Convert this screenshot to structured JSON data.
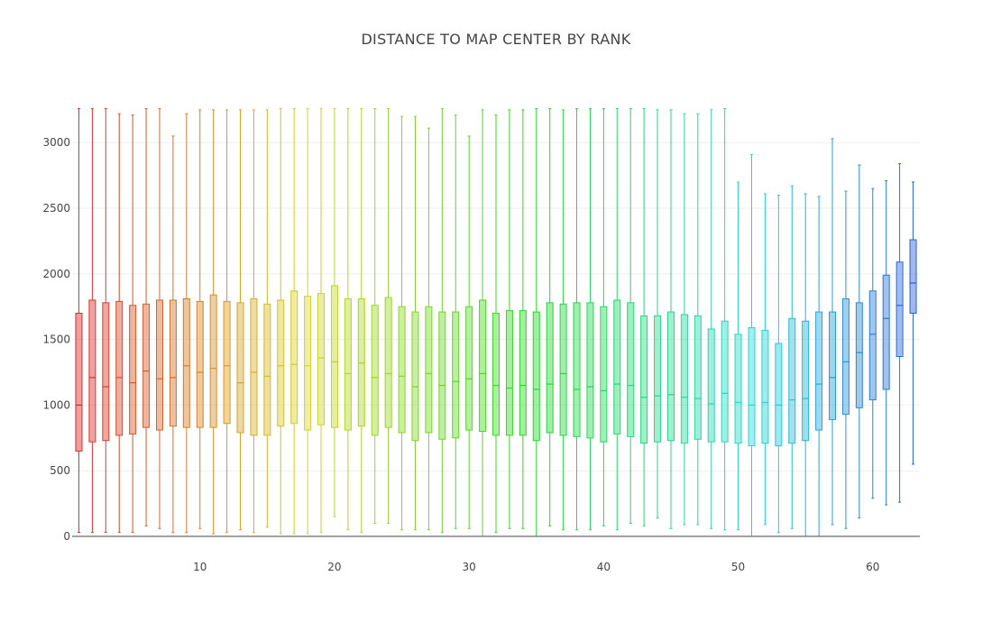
{
  "chart_data": {
    "type": "box",
    "title": "DISTANCE TO MAP CENTER BY RANK",
    "xlabel": "",
    "ylabel": "",
    "x_ticks": [
      10,
      20,
      30,
      40,
      50,
      60
    ],
    "y_ticks": [
      0,
      500,
      1000,
      1500,
      2000,
      2500,
      3000
    ],
    "ylim": [
      0,
      3400
    ],
    "xlim": [
      0.5,
      63.5
    ],
    "grid": "horizontal",
    "legend": "none",
    "ranks": [
      1,
      2,
      3,
      4,
      5,
      6,
      7,
      8,
      9,
      10,
      11,
      12,
      13,
      14,
      15,
      16,
      17,
      18,
      19,
      20,
      21,
      22,
      23,
      24,
      25,
      26,
      27,
      28,
      29,
      30,
      31,
      32,
      33,
      34,
      35,
      36,
      37,
      38,
      39,
      40,
      41,
      42,
      43,
      44,
      45,
      46,
      47,
      48,
      49,
      50,
      51,
      52,
      53,
      54,
      55,
      56,
      57,
      58,
      59,
      60,
      61,
      62,
      63
    ],
    "whisker_low": [
      30,
      30,
      30,
      30,
      30,
      80,
      60,
      30,
      30,
      60,
      20,
      30,
      50,
      30,
      70,
      20,
      20,
      20,
      30,
      150,
      50,
      30,
      100,
      100,
      50,
      50,
      50,
      30,
      60,
      60,
      0,
      30,
      60,
      60,
      0,
      80,
      50,
      50,
      50,
      80,
      50,
      100,
      80,
      140,
      60,
      90,
      90,
      60,
      50,
      50,
      0,
      90,
      30,
      60,
      0,
      0,
      90,
      60,
      140,
      290,
      240,
      260,
      550
    ],
    "q1": [
      650,
      720,
      730,
      770,
      780,
      830,
      810,
      840,
      830,
      830,
      830,
      860,
      790,
      770,
      770,
      840,
      860,
      810,
      850,
      830,
      810,
      840,
      770,
      830,
      790,
      730,
      790,
      740,
      750,
      810,
      800,
      770,
      770,
      770,
      730,
      790,
      770,
      760,
      750,
      720,
      780,
      760,
      710,
      720,
      730,
      710,
      740,
      720,
      720,
      710,
      690,
      710,
      690,
      710,
      730,
      810,
      890,
      930,
      980,
      1040,
      1120,
      1370,
      1700
    ],
    "median": [
      1000,
      1210,
      1140,
      1210,
      1170,
      1260,
      1200,
      1210,
      1300,
      1250,
      1280,
      1300,
      1170,
      1250,
      1220,
      1300,
      1310,
      1300,
      1360,
      1330,
      1240,
      1320,
      1210,
      1240,
      1220,
      1140,
      1240,
      1150,
      1180,
      1200,
      1240,
      1150,
      1130,
      1150,
      1120,
      1160,
      1240,
      1120,
      1140,
      1110,
      1160,
      1150,
      1060,
      1070,
      1080,
      1060,
      1050,
      1010,
      1090,
      1020,
      1000,
      1020,
      1000,
      1040,
      1050,
      1160,
      1210,
      1330,
      1400,
      1540,
      1660,
      1760,
      1930
    ],
    "q3": [
      1700,
      1800,
      1780,
      1790,
      1760,
      1770,
      1800,
      1800,
      1810,
      1790,
      1840,
      1790,
      1780,
      1810,
      1770,
      1800,
      1870,
      1830,
      1850,
      1910,
      1810,
      1810,
      1760,
      1820,
      1750,
      1710,
      1750,
      1710,
      1710,
      1750,
      1800,
      1700,
      1720,
      1720,
      1710,
      1780,
      1770,
      1780,
      1780,
      1750,
      1800,
      1780,
      1680,
      1680,
      1710,
      1690,
      1680,
      1580,
      1640,
      1540,
      1590,
      1570,
      1470,
      1660,
      1640,
      1710,
      1710,
      1810,
      1780,
      1870,
      1990,
      2090,
      2260
    ],
    "whisker_high": [
      3260,
      3260,
      3260,
      3220,
      3210,
      3260,
      3260,
      3050,
      3220,
      3250,
      3250,
      3250,
      3250,
      3250,
      3250,
      3260,
      3260,
      3260,
      3260,
      3260,
      3260,
      3260,
      3260,
      3260,
      3200,
      3200,
      3110,
      3260,
      3210,
      3050,
      3250,
      3210,
      3250,
      3250,
      3260,
      3260,
      3250,
      3260,
      3260,
      3260,
      3260,
      3260,
      3260,
      3250,
      3250,
      3220,
      3220,
      3250,
      3260,
      2700,
      2910,
      2610,
      2600,
      2670,
      2610,
      2590,
      3030,
      2630,
      2830,
      2650,
      2710,
      2840,
      2700
    ]
  }
}
